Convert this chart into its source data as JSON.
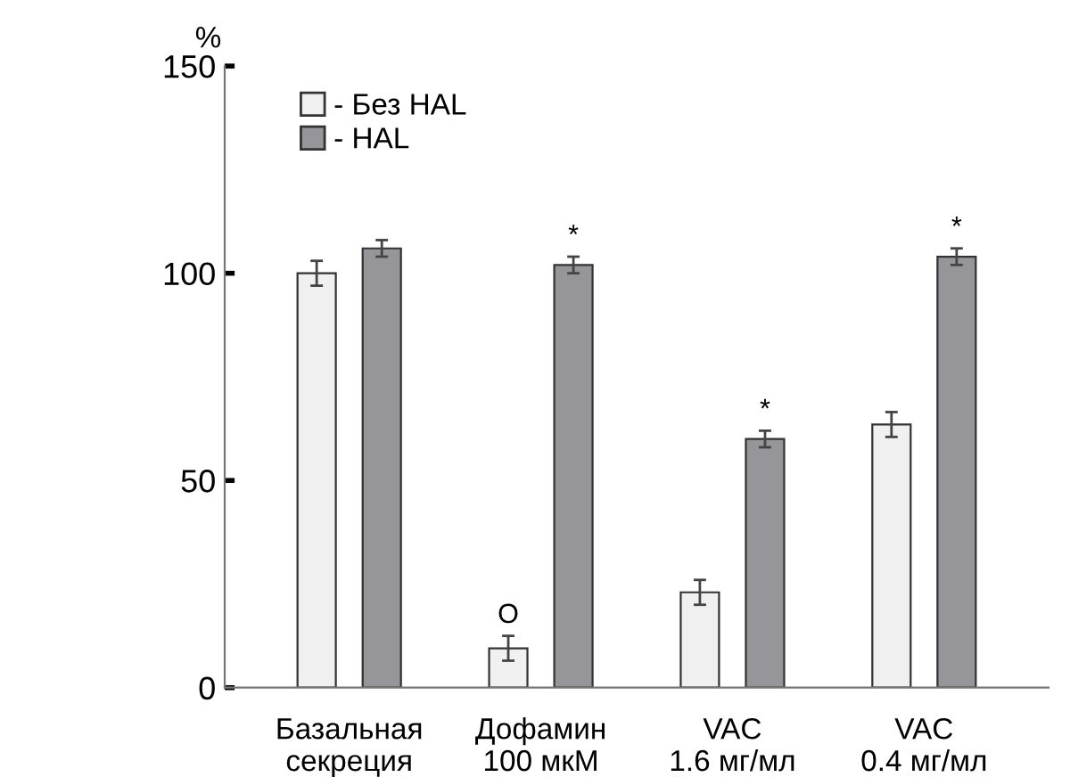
{
  "chart_data": {
    "type": "bar",
    "ylabel": "%",
    "categories": [
      "Базальная\nсекреция",
      "Дофамин\n100 мкМ",
      "VAC\n1.6 мг/мл",
      "VAC\n0.4 мг/мл"
    ],
    "series": [
      {
        "name": "- Без HAL",
        "color": "#f0f0f0",
        "values": [
          100,
          9.5,
          23,
          63.5
        ],
        "errors": [
          3,
          3,
          3,
          3
        ],
        "value_labels": [
          null,
          "O",
          null,
          null
        ]
      },
      {
        "name": "- HAL",
        "color": "#96969a",
        "values": [
          106,
          102,
          60,
          104
        ],
        "errors": [
          2,
          2,
          2,
          2
        ],
        "value_labels": [
          null,
          "*",
          "*",
          "*"
        ]
      }
    ],
    "ylim": [
      0,
      150
    ],
    "yticks": [
      0,
      50,
      100,
      150
    ],
    "grid": false,
    "legend": "top left"
  }
}
